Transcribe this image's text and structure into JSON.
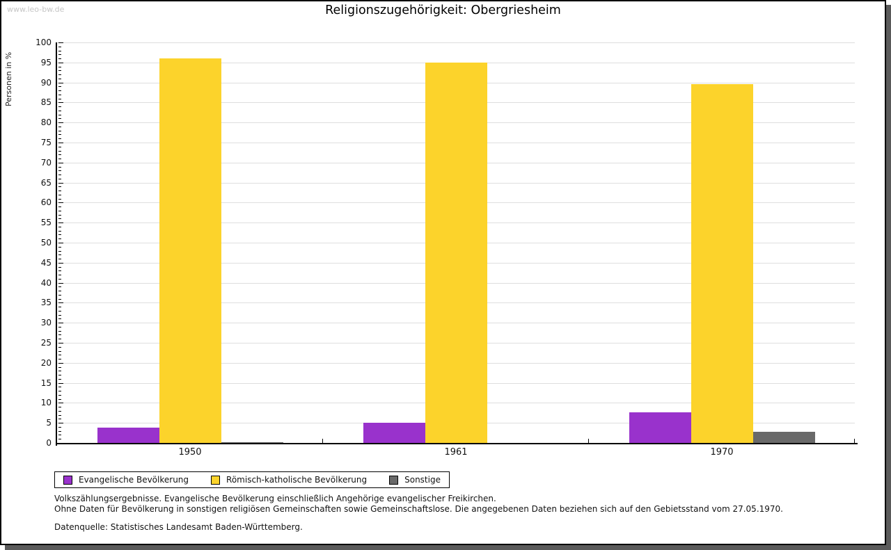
{
  "watermark": "www.leo-bw.de",
  "title": "Religionszugehörigkeit: Obergriesheim",
  "chart_data": {
    "type": "bar",
    "title": "Religionszugehörigkeit: Obergriesheim",
    "categories": [
      "1950",
      "1961",
      "1970"
    ],
    "series": [
      {
        "name": "Evangelische Bevölkerung",
        "color": "#9932CC",
        "values": [
          3.9,
          5.0,
          7.7
        ]
      },
      {
        "name": "Römisch-katholische Bevölkerung",
        "color": "#FCD32B",
        "values": [
          96.0,
          94.9,
          89.5
        ]
      },
      {
        "name": "Sonstige",
        "color": "#696969",
        "values": [
          0.2,
          0.0,
          2.8
        ]
      }
    ],
    "ylabel": "Personen in %",
    "xlabel": "",
    "ylim": [
      0,
      100
    ],
    "ytick_major": 5,
    "ytick_minor": 1,
    "grid": true,
    "legend_position": "bottom-left"
  },
  "legend": {
    "items": [
      {
        "label": "Evangelische Bevölkerung",
        "color": "#9932CC"
      },
      {
        "label": "Römisch-katholische Bevölkerung",
        "color": "#FCD32B"
      },
      {
        "label": "Sonstige",
        "color": "#696969"
      }
    ]
  },
  "footnotes": [
    "Volkszählungsergebnisse. Evangelische Bevölkerung einschließlich Angehörige evangelischer Freikirchen.",
    "Ohne Daten für Bevölkerung in sonstigen religiösen Gemeinschaften sowie Gemeinschaftslose. Die angegebenen Daten beziehen sich auf den Gebietsstand vom 27.05.1970.",
    "Datenquelle: Statistisches Landesamt Baden-Württemberg."
  ],
  "colors": {
    "grid": "#dedede",
    "axis": "#000000",
    "watermark": "#c6c6c6",
    "frame_shadow": "#5a5a5a",
    "background": "#ffffff"
  }
}
